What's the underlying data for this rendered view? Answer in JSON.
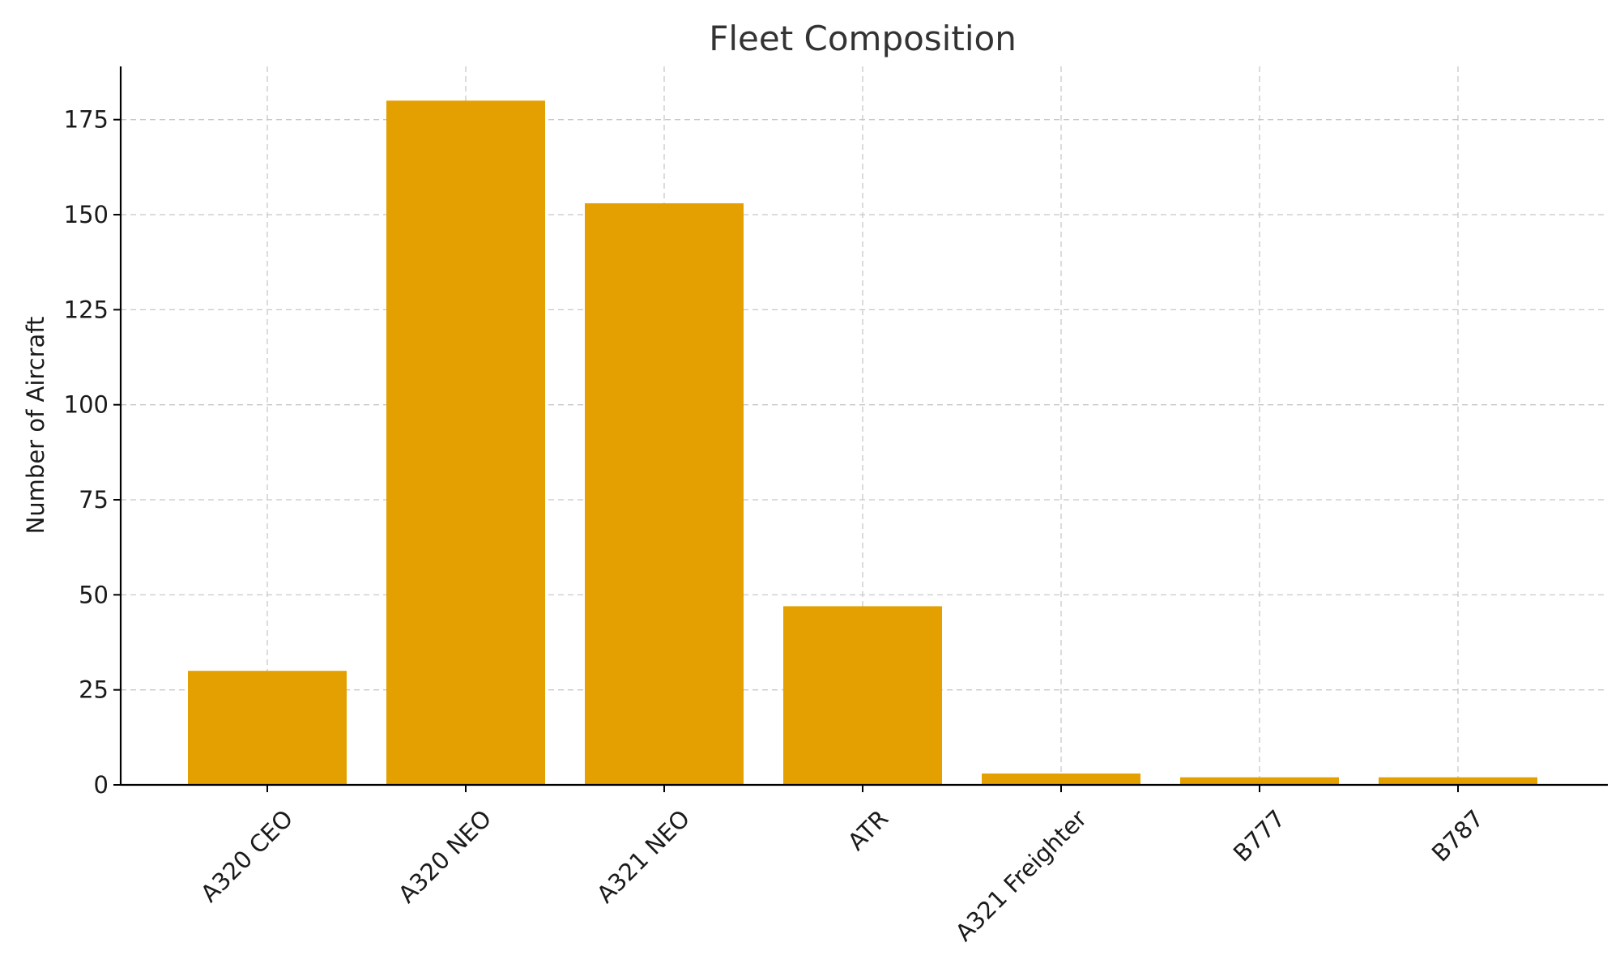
{
  "chart_data": {
    "type": "bar",
    "title": "Fleet Composition",
    "xlabel": "",
    "ylabel": "Number of Aircraft",
    "categories": [
      "A320 CEO",
      "A320 NEO",
      "A321 NEO",
      "ATR",
      "A321 Freighter",
      "B777",
      "B787"
    ],
    "values": [
      30,
      180,
      153,
      47,
      3,
      2,
      2
    ],
    "ylim": [
      0,
      189
    ],
    "yticks": [
      0,
      25,
      50,
      75,
      100,
      125,
      150,
      175
    ],
    "grid": true,
    "bar_color": "#E3A000"
  }
}
